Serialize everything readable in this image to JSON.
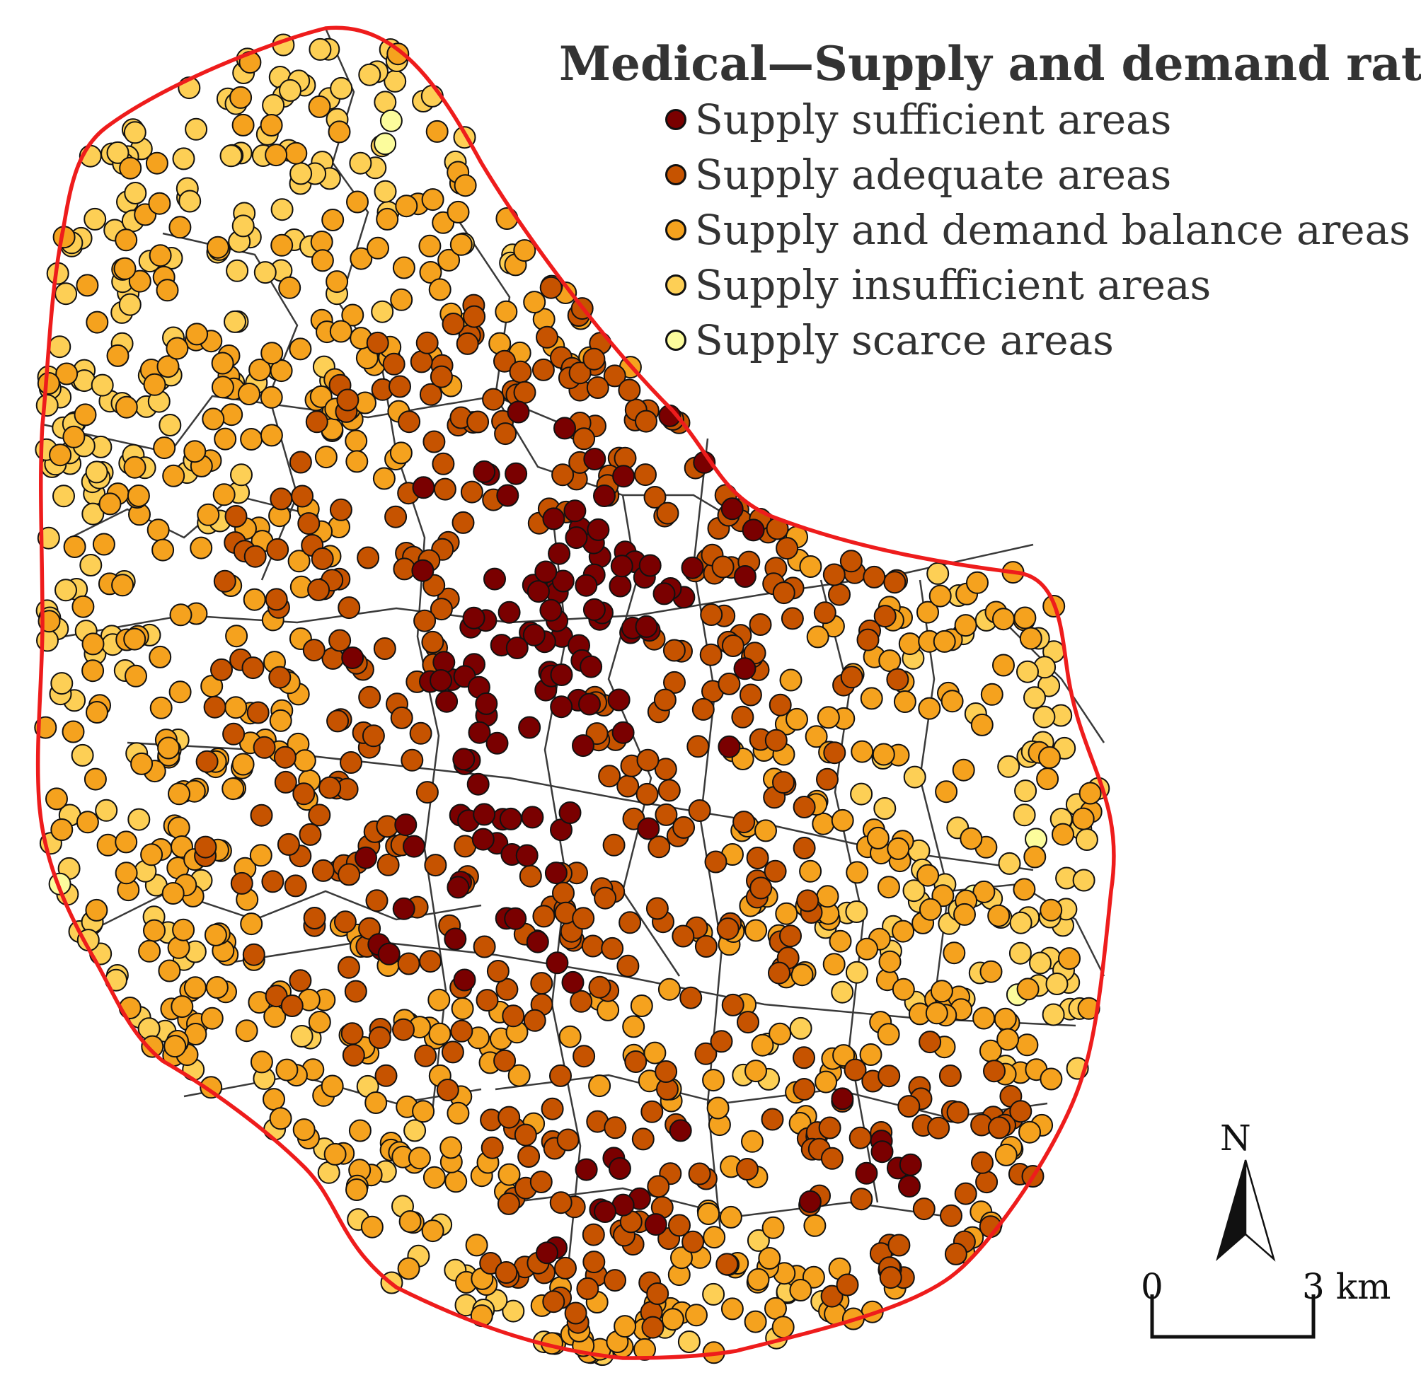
{
  "legend": {
    "title": "Medical—Supply and demand ratio",
    "items": [
      {
        "label": "Supply sufficient areas",
        "color": "#7a0000"
      },
      {
        "label": "Supply adequate areas",
        "color": "#c65300"
      },
      {
        "label": "Supply and demand balance areas",
        "color": "#f5a21e"
      },
      {
        "label": "Supply insufficient areas",
        "color": "#fdcf55"
      },
      {
        "label": "Supply scarce areas",
        "color": "#fcfc9c"
      }
    ]
  },
  "north_arrow": {
    "label": "N"
  },
  "scale_bar": {
    "start_label": "0",
    "end_label": "3 km"
  },
  "colors": {
    "boundary": "#ee1c1c",
    "district_lines": "#3a3a3a",
    "point_outline": "#111111"
  }
}
